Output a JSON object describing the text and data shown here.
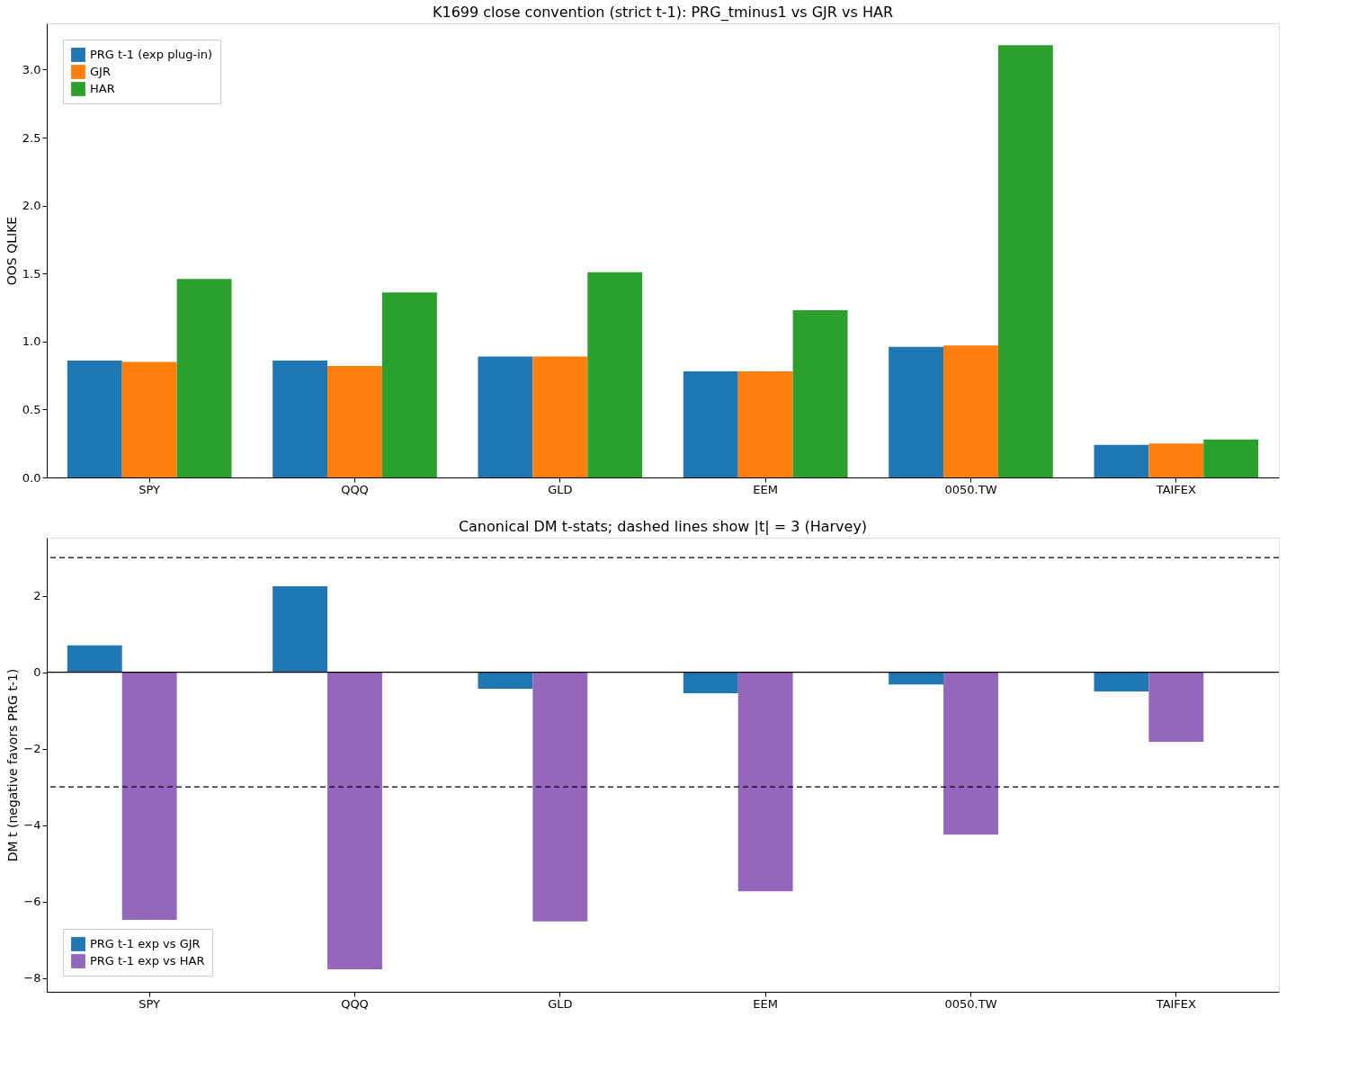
{
  "chart_data": [
    {
      "type": "bar",
      "title": "K1699 close convention (strict t-1): PRG_tminus1 vs GJR vs HAR",
      "ylabel": "OOS QLIKE",
      "categories": [
        "SPY",
        "QQQ",
        "GLD",
        "EEM",
        "0050.TW",
        "TAIFEX"
      ],
      "series": [
        {
          "name": "PRG t-1 (exp plug-in)",
          "color": "#1f77b4",
          "values": [
            0.86,
            0.86,
            0.89,
            0.78,
            0.96,
            0.24
          ]
        },
        {
          "name": "GJR",
          "color": "#ff7f0e",
          "values": [
            0.85,
            0.82,
            0.89,
            0.78,
            0.97,
            0.25
          ]
        },
        {
          "name": "HAR",
          "color": "#2ca02c",
          "values": [
            1.46,
            1.36,
            1.51,
            1.23,
            3.18,
            0.28
          ]
        }
      ],
      "ylim": [
        0,
        3.34
      ],
      "yticks": [
        {
          "value": 0,
          "label": "0.0"
        },
        {
          "value": 0.5,
          "label": "0.5"
        },
        {
          "value": 1,
          "label": "1.0"
        },
        {
          "value": 1.5,
          "label": "1.5"
        },
        {
          "value": 2,
          "label": "2.0"
        },
        {
          "value": 2.5,
          "label": "2.5"
        },
        {
          "value": 3,
          "label": "3.0"
        }
      ],
      "grid": false,
      "legend": "top left"
    },
    {
      "type": "bar",
      "title": "Canonical DM t-stats; dashed lines show |t| = 3 (Harvey)",
      "ylabel": "DM t (negative favors PRG t-1)",
      "categories": [
        "SPY",
        "QQQ",
        "GLD",
        "EEM",
        "0050.TW",
        "TAIFEX"
      ],
      "series": [
        {
          "name": "PRG t-1 exp vs GJR",
          "color": "#1f77b4",
          "values": [
            0.7,
            2.25,
            -0.43,
            -0.55,
            -0.32,
            -0.5
          ]
        },
        {
          "name": "PRG t-1 exp vs HAR",
          "color": "#9467bd",
          "values": [
            -6.48,
            -7.77,
            -6.52,
            -5.73,
            -4.25,
            -1.82
          ]
        }
      ],
      "ylim": [
        -8.36,
        3.52
      ],
      "yticks": [
        {
          "value": -8,
          "label": "−8"
        },
        {
          "value": -6,
          "label": "−6"
        },
        {
          "value": -4,
          "label": "−4"
        },
        {
          "value": -2,
          "label": "−2"
        },
        {
          "value": 0,
          "label": "0"
        },
        {
          "value": 2,
          "label": "2"
        }
      ],
      "ref_lines": [
        {
          "axis": "y",
          "value": 3,
          "line_style": "dashed"
        },
        {
          "axis": "y",
          "value": -3,
          "line_style": "dashed"
        },
        {
          "axis": "y",
          "value": 0,
          "line_style": "solid"
        }
      ],
      "grid": false,
      "legend": "bottom left"
    }
  ]
}
